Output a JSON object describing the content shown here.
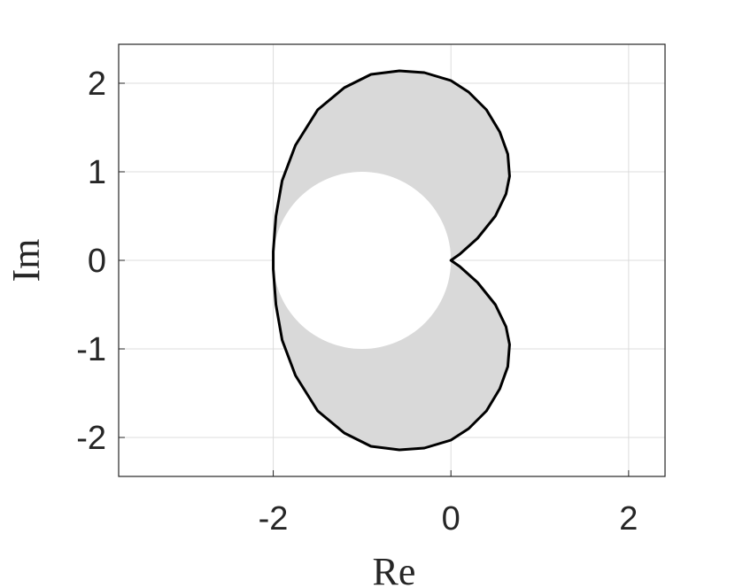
{
  "chart_data": {
    "type": "region",
    "xlabel": "Re",
    "ylabel": "Im",
    "xlim": [
      -3.74,
      2.41
    ],
    "ylim": [
      -2.44,
      2.44
    ],
    "xticks": [
      -2,
      0,
      2
    ],
    "yticks": [
      -2,
      -1,
      0,
      1,
      2
    ],
    "grid": true,
    "series": [
      {
        "color": "#000000",
        "fill": "#d9d9d9",
        "x": [
          0,
          0.1,
          0.3,
          0.5,
          0.62,
          0.66,
          0.64,
          0.55,
          0.4,
          0.2,
          0,
          -0.3,
          -0.58,
          -0.9,
          -1.2,
          -1.5,
          -1.75,
          -1.9,
          -1.97,
          -2,
          -2,
          -1.97,
          -1.9,
          -1.75,
          -1.5,
          -1.2,
          -0.9,
          -0.58,
          -0.3,
          0,
          0.2,
          0.4,
          0.55,
          0.64,
          0.66,
          0.62,
          0.5,
          0.3,
          0.1,
          0
        ],
        "y": [
          0,
          0.07,
          0.25,
          0.5,
          0.75,
          0.95,
          1.2,
          1.45,
          1.7,
          1.9,
          2.03,
          2.12,
          2.14,
          2.1,
          1.95,
          1.7,
          1.3,
          0.9,
          0.5,
          0.1,
          -0.1,
          -0.5,
          -0.9,
          -1.3,
          -1.7,
          -1.95,
          -2.1,
          -2.14,
          -2.12,
          -2.03,
          -1.9,
          -1.7,
          -1.45,
          -1.2,
          -0.95,
          -0.75,
          -0.5,
          -0.25,
          -0.07,
          0
        ]
      }
    ],
    "circle": {
      "center": [
        -1,
        0
      ],
      "radius": 1,
      "color": "#ffffff"
    }
  }
}
